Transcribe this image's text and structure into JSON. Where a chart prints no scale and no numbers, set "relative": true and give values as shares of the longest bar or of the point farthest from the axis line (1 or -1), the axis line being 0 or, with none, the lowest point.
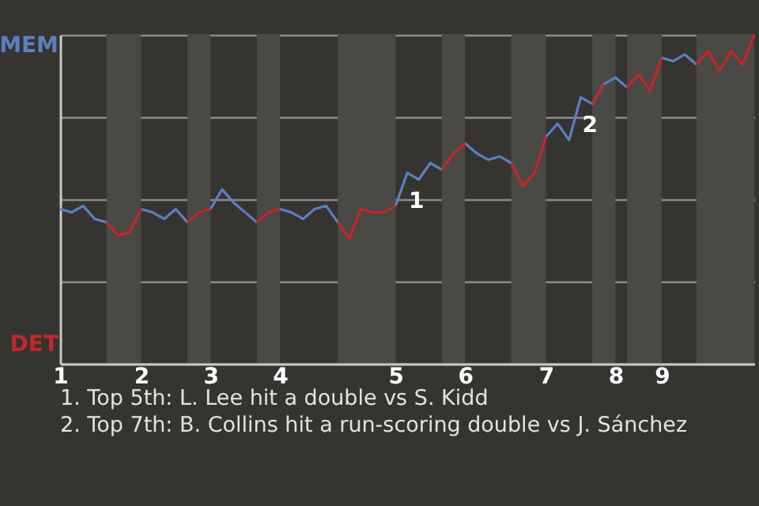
{
  "chart_data": {
    "type": "line",
    "relative": true,
    "categories": [
      "1",
      null,
      null,
      null,
      null,
      null,
      null,
      "2",
      null,
      null,
      null,
      null,
      null,
      "3",
      null,
      null,
      null,
      null,
      null,
      "4",
      null,
      null,
      null,
      null,
      null,
      null,
      null,
      null,
      null,
      "5",
      null,
      null,
      null,
      null,
      null,
      "6",
      null,
      null,
      null,
      null,
      null,
      null,
      "7",
      null,
      null,
      null,
      null,
      null,
      "8",
      null,
      null,
      null,
      "9",
      null,
      null,
      null,
      null,
      null,
      null,
      null,
      null
    ],
    "series": [
      {
        "name": "MEM",
        "color": "#5b7fc2",
        "values": [
          0.47,
          0.46,
          0.48,
          0.44,
          0.43,
          null,
          null,
          0.47,
          0.46,
          0.44,
          0.47,
          0.43,
          null,
          0.47,
          0.53,
          0.49,
          0.46,
          0.43,
          null,
          0.47,
          0.46,
          0.44,
          0.47,
          0.48,
          0.43,
          null,
          null,
          null,
          null,
          0.48,
          0.58,
          0.56,
          0.61,
          0.59,
          null,
          0.67,
          0.64,
          0.62,
          0.63,
          0.61,
          null,
          null,
          0.69,
          0.73,
          0.68,
          0.81,
          0.79,
          0.85,
          0.87,
          0.84,
          null,
          null,
          0.93,
          0.92,
          0.94,
          0.91,
          null,
          null,
          null,
          null,
          null
        ]
      },
      {
        "name": "DET",
        "color": "#c4272a",
        "values": [
          null,
          null,
          null,
          null,
          0.43,
          0.39,
          0.4,
          0.47,
          null,
          null,
          null,
          0.43,
          0.46,
          0.47,
          null,
          null,
          null,
          0.43,
          0.46,
          0.47,
          null,
          null,
          null,
          null,
          0.43,
          0.38,
          0.47,
          0.46,
          0.46,
          0.48,
          null,
          null,
          null,
          0.59,
          0.64,
          0.67,
          null,
          null,
          null,
          0.61,
          0.54,
          0.58,
          0.69,
          null,
          null,
          null,
          0.79,
          0.85,
          null,
          0.84,
          0.88,
          0.83,
          0.93,
          null,
          null,
          0.91,
          0.95,
          0.89,
          0.95,
          0.91,
          1.0
        ]
      }
    ],
    "grid": "y",
    "annotations": [
      {
        "text": "1",
        "y": 0.58
      },
      {
        "text": "2",
        "y": 0.81
      },
      "1. Top 5th: L. Lee hit a double vs S. Kidd",
      "2. Top 7th: B. Collins hit a run-scoring double vs J. Sánchez"
    ]
  }
}
